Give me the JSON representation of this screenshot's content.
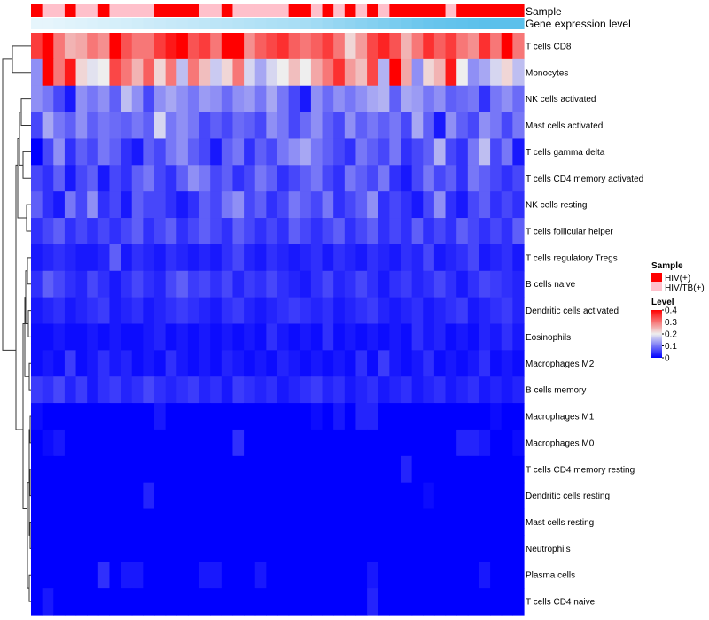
{
  "chart_data": {
    "type": "heatmap",
    "title": "",
    "annotations": {
      "sample_label": "Sample",
      "gene_label": "Gene expression level",
      "sample_row": [
        0,
        1,
        1,
        0,
        1,
        1,
        0,
        1,
        1,
        1,
        1,
        0,
        0,
        0,
        0,
        1,
        1,
        0,
        1,
        1,
        1,
        1,
        1,
        0,
        0,
        1,
        0,
        1,
        0,
        1,
        0,
        1,
        0,
        0,
        0,
        0,
        0,
        1,
        0,
        0,
        0,
        0,
        0,
        0
      ],
      "gene_row": [
        0,
        0,
        0.02,
        0.04,
        0.06,
        0.08,
        0.1,
        0.12,
        0.14,
        0.16,
        0.18,
        0.2,
        0.22,
        0.24,
        0.26,
        0.28,
        0.3,
        0.32,
        0.34,
        0.36,
        0.38,
        0.4,
        0.42,
        0.44,
        0.46,
        0.5,
        0.54,
        0.58,
        0.62,
        0.66,
        0.7,
        0.74,
        0.78,
        0.82,
        0.86,
        0.9,
        0.92,
        0.94,
        0.96,
        0.98,
        1,
        1,
        1,
        1
      ]
    },
    "rows": [
      "T cells CD8",
      "Monocytes",
      "NK cells activated",
      "Mast cells activated",
      "T cells gamma delta",
      "T cells CD4 memory activated",
      "NK cells resting",
      "T cells follicular helper",
      "T cells regulatory  Tregs",
      "B cells naive",
      "Dendritic cells activated",
      "Eosinophils",
      "Macrophages M2",
      "B cells memory",
      "Macrophages M1",
      "Macrophages M0",
      "T cells CD4 memory resting",
      "Dendritic cells resting",
      "Mast cells resting",
      "Neutrophils",
      "Plasma cells",
      "T cells CD4 naive"
    ],
    "n_columns": 44,
    "values": [
      [
        0.35,
        0.4,
        0.3,
        0.25,
        0.26,
        0.3,
        0.28,
        0.4,
        0.33,
        0.3,
        0.3,
        0.35,
        0.38,
        0.4,
        0.33,
        0.35,
        0.3,
        0.4,
        0.4,
        0.28,
        0.32,
        0.34,
        0.36,
        0.32,
        0.3,
        0.32,
        0.35,
        0.3,
        0.22,
        0.27,
        0.34,
        0.37,
        0.33,
        0.25,
        0.3,
        0.36,
        0.32,
        0.35,
        0.3,
        0.28,
        0.36,
        0.3,
        0.4,
        0.3
      ],
      [
        0.12,
        0.4,
        0.3,
        0.38,
        0.22,
        0.19,
        0.2,
        0.34,
        0.3,
        0.25,
        0.32,
        0.22,
        0.3,
        0.16,
        0.3,
        0.24,
        0.17,
        0.22,
        0.3,
        0.18,
        0.14,
        0.18,
        0.2,
        0.24,
        0.2,
        0.26,
        0.3,
        0.36,
        0.27,
        0.24,
        0.34,
        0.15,
        0.4,
        0.26,
        0.12,
        0.22,
        0.25,
        0.38,
        0.2,
        0.12,
        0.14,
        0.18,
        0.22,
        0.16
      ],
      [
        0.12,
        0.1,
        0.06,
        0.02,
        0.12,
        0.1,
        0.12,
        0.08,
        0.16,
        0.12,
        0.06,
        0.12,
        0.14,
        0.12,
        0.1,
        0.13,
        0.12,
        0.09,
        0.12,
        0.13,
        0.1,
        0.14,
        0.1,
        0.06,
        0.02,
        0.12,
        0.09,
        0.12,
        0.1,
        0.12,
        0.14,
        0.15,
        0.08,
        0.14,
        0.13,
        0.1,
        0.12,
        0.08,
        0.09,
        0.1,
        0.04,
        0.1,
        0.12,
        0.09
      ],
      [
        0.06,
        0.14,
        0.1,
        0.08,
        0.12,
        0.08,
        0.1,
        0.09,
        0.08,
        0.1,
        0.08,
        0.18,
        0.1,
        0.12,
        0.1,
        0.06,
        0.08,
        0.06,
        0.09,
        0.08,
        0.06,
        0.12,
        0.1,
        0.06,
        0.09,
        0.12,
        0.08,
        0.06,
        0.12,
        0.08,
        0.1,
        0.08,
        0.1,
        0.06,
        0.14,
        0.08,
        0.02,
        0.12,
        0.08,
        0.06,
        0.12,
        0.1,
        0.06,
        0.1
      ],
      [
        0.0,
        0.06,
        0.12,
        0.04,
        0.08,
        0.06,
        0.1,
        0.08,
        0.04,
        0.02,
        0.08,
        0.06,
        0.1,
        0.12,
        0.08,
        0.06,
        0.02,
        0.08,
        0.1,
        0.04,
        0.08,
        0.06,
        0.1,
        0.12,
        0.14,
        0.1,
        0.08,
        0.06,
        0.04,
        0.1,
        0.08,
        0.06,
        0.1,
        0.04,
        0.06,
        0.08,
        0.15,
        0.06,
        0.04,
        0.1,
        0.16,
        0.06,
        0.1,
        0.02
      ],
      [
        0.06,
        0.04,
        0.08,
        0.02,
        0.06,
        0.08,
        0.02,
        0.06,
        0.04,
        0.08,
        0.1,
        0.06,
        0.04,
        0.08,
        0.12,
        0.1,
        0.06,
        0.08,
        0.04,
        0.06,
        0.1,
        0.08,
        0.04,
        0.06,
        0.08,
        0.1,
        0.06,
        0.04,
        0.1,
        0.08,
        0.06,
        0.1,
        0.04,
        0.02,
        0.06,
        0.1,
        0.06,
        0.08,
        0.04,
        0.1,
        0.08,
        0.06,
        0.04,
        0.06
      ],
      [
        0.08,
        0.04,
        0.02,
        0.1,
        0.06,
        0.12,
        0.04,
        0.06,
        0.02,
        0.08,
        0.06,
        0.06,
        0.04,
        0.02,
        0.04,
        0.08,
        0.06,
        0.1,
        0.12,
        0.06,
        0.08,
        0.04,
        0.06,
        0.1,
        0.08,
        0.06,
        0.1,
        0.04,
        0.06,
        0.08,
        0.12,
        0.04,
        0.06,
        0.04,
        0.02,
        0.06,
        0.12,
        0.04,
        0.02,
        0.06,
        0.08,
        0.04,
        0.06,
        0.04
      ],
      [
        0.04,
        0.06,
        0.08,
        0.04,
        0.06,
        0.04,
        0.06,
        0.04,
        0.06,
        0.08,
        0.04,
        0.06,
        0.08,
        0.04,
        0.06,
        0.08,
        0.06,
        0.04,
        0.08,
        0.06,
        0.04,
        0.06,
        0.04,
        0.08,
        0.06,
        0.04,
        0.06,
        0.08,
        0.04,
        0.06,
        0.08,
        0.04,
        0.06,
        0.04,
        0.08,
        0.04,
        0.06,
        0.04,
        0.08,
        0.06,
        0.04,
        0.06,
        0.04,
        0.08
      ],
      [
        0.02,
        0.03,
        0.04,
        0.03,
        0.02,
        0.02,
        0.03,
        0.08,
        0.02,
        0.04,
        0.03,
        0.02,
        0.04,
        0.03,
        0.02,
        0.03,
        0.02,
        0.04,
        0.06,
        0.03,
        0.02,
        0.04,
        0.03,
        0.02,
        0.03,
        0.04,
        0.02,
        0.04,
        0.03,
        0.02,
        0.04,
        0.03,
        0.02,
        0.04,
        0.03,
        0.06,
        0.02,
        0.03,
        0.04,
        0.06,
        0.02,
        0.03,
        0.04,
        0.02
      ],
      [
        0.04,
        0.08,
        0.06,
        0.04,
        0.03,
        0.06,
        0.04,
        0.02,
        0.04,
        0.06,
        0.04,
        0.03,
        0.06,
        0.08,
        0.05,
        0.06,
        0.04,
        0.06,
        0.03,
        0.05,
        0.04,
        0.06,
        0.04,
        0.03,
        0.02,
        0.04,
        0.06,
        0.03,
        0.04,
        0.06,
        0.04,
        0.02,
        0.04,
        0.05,
        0.03,
        0.04,
        0.06,
        0.04,
        0.02,
        0.04,
        0.06,
        0.05,
        0.04,
        0.03
      ],
      [
        0.02,
        0.03,
        0.04,
        0.02,
        0.03,
        0.04,
        0.05,
        0.02,
        0.03,
        0.04,
        0.02,
        0.03,
        0.04,
        0.05,
        0.04,
        0.03,
        0.02,
        0.04,
        0.05,
        0.03,
        0.02,
        0.03,
        0.04,
        0.05,
        0.04,
        0.03,
        0.04,
        0.02,
        0.03,
        0.04,
        0.05,
        0.03,
        0.02,
        0.03,
        0.04,
        0.02,
        0.03,
        0.04,
        0.05,
        0.02,
        0.03,
        0.04,
        0.05,
        0.03
      ],
      [
        0.01,
        0.01,
        0.02,
        0.01,
        0.01,
        0.02,
        0.01,
        0.02,
        0.01,
        0.01,
        0.02,
        0.03,
        0.01,
        0.02,
        0.01,
        0.02,
        0.01,
        0.02,
        0.01,
        0.02,
        0.01,
        0.04,
        0.02,
        0.01,
        0.02,
        0.01,
        0.04,
        0.01,
        0.02,
        0.01,
        0.02,
        0.01,
        0.02,
        0.01,
        0.04,
        0.02,
        0.03,
        0.01,
        0.02,
        0.01,
        0.03,
        0.02,
        0.04,
        0.02
      ],
      [
        0.01,
        0.02,
        0.01,
        0.05,
        0.01,
        0.02,
        0.04,
        0.02,
        0.03,
        0.01,
        0.02,
        0.01,
        0.04,
        0.02,
        0.01,
        0.02,
        0.01,
        0.03,
        0.02,
        0.01,
        0.02,
        0.01,
        0.03,
        0.02,
        0.01,
        0.02,
        0.01,
        0.02,
        0.01,
        0.04,
        0.01,
        0.05,
        0.02,
        0.01,
        0.02,
        0.04,
        0.01,
        0.02,
        0.01,
        0.02,
        0.04,
        0.01,
        0.02,
        0.01
      ],
      [
        0.05,
        0.04,
        0.06,
        0.03,
        0.05,
        0.02,
        0.04,
        0.05,
        0.03,
        0.04,
        0.06,
        0.04,
        0.03,
        0.04,
        0.05,
        0.03,
        0.04,
        0.02,
        0.05,
        0.04,
        0.03,
        0.04,
        0.02,
        0.03,
        0.04,
        0.05,
        0.03,
        0.04,
        0.02,
        0.03,
        0.04,
        0.02,
        0.03,
        0.04,
        0.02,
        0.03,
        0.04,
        0.02,
        0.03,
        0.04,
        0.02,
        0.03,
        0.02,
        0.03
      ],
      [
        0.01,
        0.0,
        0.0,
        0.0,
        0.0,
        0.0,
        0.0,
        0.0,
        0.0,
        0.0,
        0.0,
        0.02,
        0.0,
        0.0,
        0.0,
        0.0,
        0.0,
        0.0,
        0.0,
        0.0,
        0.0,
        0.0,
        0.0,
        0.0,
        0.0,
        0.01,
        0.0,
        0.02,
        0.0,
        0.03,
        0.03,
        0.0,
        0.0,
        0.0,
        0.0,
        0.0,
        0.0,
        0.0,
        0.0,
        0.0,
        0.0,
        0.01,
        0.0,
        0.0
      ],
      [
        0.0,
        0.01,
        0.02,
        0.0,
        0.0,
        0.0,
        0.0,
        0.0,
        0.0,
        0.0,
        0.0,
        0.0,
        0.0,
        0.0,
        0.0,
        0.0,
        0.0,
        0.0,
        0.04,
        0.0,
        0.0,
        0.0,
        0.0,
        0.0,
        0.0,
        0.0,
        0.0,
        0.0,
        0.0,
        0.0,
        0.0,
        0.0,
        0.0,
        0.0,
        0.0,
        0.0,
        0.0,
        0.0,
        0.03,
        0.03,
        0.02,
        0.0,
        0.0,
        0.01
      ],
      [
        0.0,
        0.0,
        0.0,
        0.0,
        0.0,
        0.0,
        0.0,
        0.0,
        0.0,
        0.0,
        0.0,
        0.0,
        0.0,
        0.0,
        0.0,
        0.0,
        0.0,
        0.0,
        0.0,
        0.0,
        0.0,
        0.0,
        0.0,
        0.0,
        0.0,
        0.0,
        0.0,
        0.0,
        0.0,
        0.0,
        0.0,
        0.0,
        0.0,
        0.03,
        0.0,
        0.0,
        0.0,
        0.0,
        0.0,
        0.0,
        0.0,
        0.0,
        0.0,
        0.0
      ],
      [
        0.0,
        0.0,
        0.0,
        0.0,
        0.0,
        0.0,
        0.0,
        0.0,
        0.0,
        0.0,
        0.03,
        0.0,
        0.0,
        0.0,
        0.0,
        0.0,
        0.0,
        0.0,
        0.0,
        0.0,
        0.0,
        0.0,
        0.0,
        0.0,
        0.0,
        0.0,
        0.0,
        0.0,
        0.0,
        0.0,
        0.0,
        0.0,
        0.0,
        0.0,
        0.0,
        0.01,
        0.0,
        0.0,
        0.0,
        0.0,
        0.0,
        0.0,
        0.0,
        0.0
      ],
      [
        0.0,
        0.0,
        0.0,
        0.0,
        0.0,
        0.0,
        0.0,
        0.0,
        0.0,
        0.0,
        0.0,
        0.0,
        0.0,
        0.0,
        0.0,
        0.0,
        0.0,
        0.0,
        0.0,
        0.0,
        0.0,
        0.0,
        0.0,
        0.0,
        0.0,
        0.0,
        0.0,
        0.0,
        0.0,
        0.0,
        0.0,
        0.0,
        0.0,
        0.0,
        0.0,
        0.0,
        0.0,
        0.0,
        0.0,
        0.0,
        0.0,
        0.0,
        0.0,
        0.0
      ],
      [
        0.0,
        0.0,
        0.0,
        0.0,
        0.0,
        0.0,
        0.0,
        0.0,
        0.0,
        0.0,
        0.0,
        0.0,
        0.0,
        0.0,
        0.0,
        0.0,
        0.0,
        0.0,
        0.0,
        0.0,
        0.0,
        0.0,
        0.0,
        0.0,
        0.0,
        0.0,
        0.0,
        0.0,
        0.0,
        0.0,
        0.0,
        0.0,
        0.0,
        0.0,
        0.0,
        0.0,
        0.0,
        0.0,
        0.0,
        0.0,
        0.0,
        0.0,
        0.0,
        0.0
      ],
      [
        0.0,
        0.0,
        0.0,
        0.0,
        0.0,
        0.0,
        0.04,
        0.0,
        0.02,
        0.02,
        0.0,
        0.0,
        0.0,
        0.0,
        0.0,
        0.02,
        0.02,
        0.0,
        0.0,
        0.0,
        0.02,
        0.0,
        0.0,
        0.0,
        0.0,
        0.0,
        0.0,
        0.0,
        0.0,
        0.0,
        0.02,
        0.0,
        0.0,
        0.0,
        0.0,
        0.0,
        0.0,
        0.0,
        0.0,
        0.0,
        0.02,
        0.0,
        0.0,
        0.0
      ],
      [
        0.0,
        0.02,
        0.0,
        0.0,
        0.0,
        0.0,
        0.0,
        0.0,
        0.0,
        0.0,
        0.0,
        0.0,
        0.0,
        0.0,
        0.0,
        0.0,
        0.0,
        0.0,
        0.0,
        0.0,
        0.0,
        0.0,
        0.0,
        0.0,
        0.0,
        0.0,
        0.0,
        0.0,
        0.0,
        0.0,
        0.03,
        0.0,
        0.0,
        0.0,
        0.0,
        0.0,
        0.0,
        0.0,
        0.0,
        0.0,
        0.0,
        0.0,
        0.0,
        0.0
      ]
    ],
    "color_scale": {
      "min": 0,
      "mid": 0.2,
      "max": 0.4,
      "low": "#0000FF",
      "middle": "#EEEEEE",
      "high": "#FF0000"
    },
    "legend": {
      "sample_title": "Sample",
      "sample_items": [
        {
          "label": "HIV(+)",
          "color": "#FF0000"
        },
        {
          "label": "HIV/TB(+)",
          "color": "#FFC0CB"
        }
      ],
      "level_title": "Level",
      "level_ticks": [
        "0.4",
        "0.3",
        "0.2",
        "0.1",
        "0"
      ],
      "level_tick_values": [
        0.4,
        0.3,
        0.2,
        0.1,
        0
      ],
      "placement": "right"
    },
    "gene_colors": {
      "light": "#E6F5FC",
      "dark": "#5BC0EB"
    }
  }
}
